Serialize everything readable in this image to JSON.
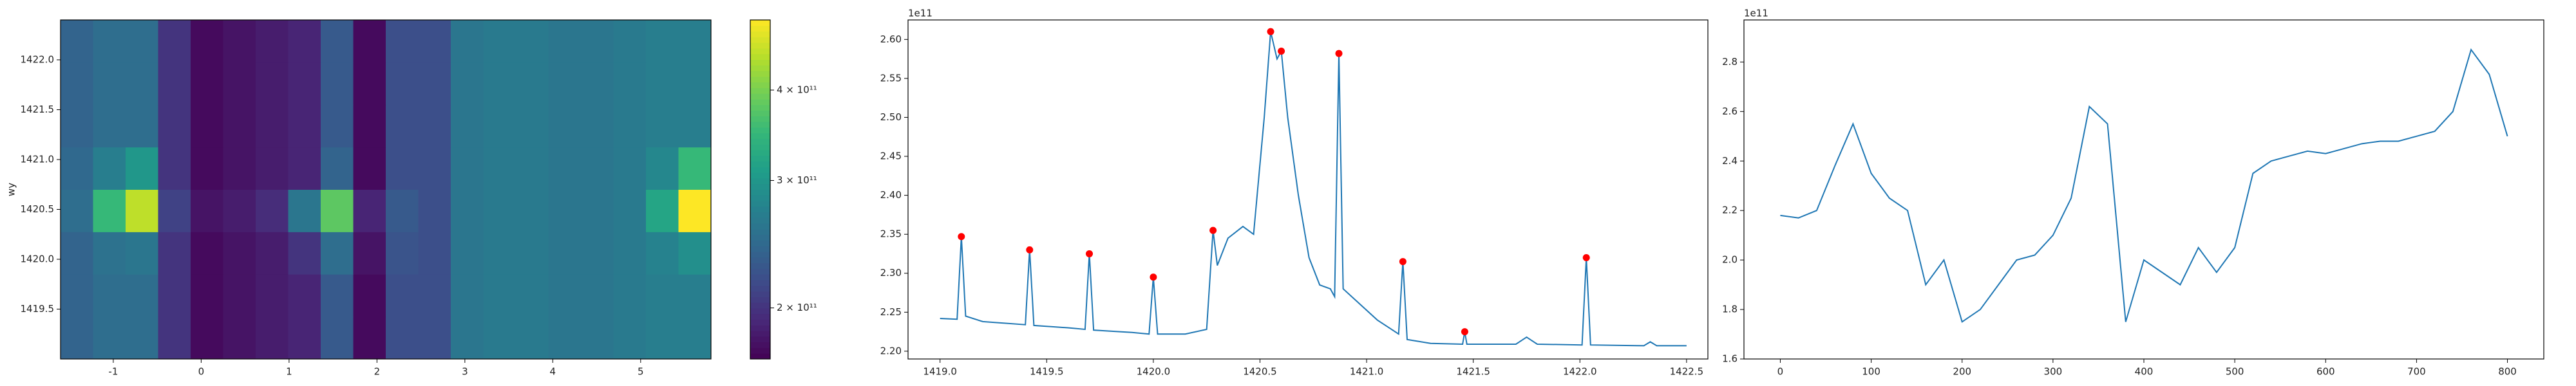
{
  "chart_data": [
    {
      "type": "heatmap",
      "ylabel": "wy",
      "xbins": [
        -1.6,
        -1.23,
        -0.86,
        -0.49,
        -0.12,
        0.25,
        0.62,
        0.99,
        1.36,
        1.73,
        2.1,
        2.47,
        2.84,
        3.21,
        3.58,
        3.95,
        4.32,
        4.69,
        5.06,
        5.43,
        5.8
      ],
      "ybins": [
        1419.0,
        1419.425,
        1419.85,
        1420.275,
        1420.7,
        1421.125,
        1421.55,
        1421.975,
        1422.4
      ],
      "z": [
        [
          240000000000.0,
          250000000000.0,
          250000000000.0,
          200000000000.0,
          175000000000.0,
          180000000000.0,
          185000000000.0,
          190000000000.0,
          230000000000.0,
          175000000000.0,
          220000000000.0,
          220000000000.0,
          260000000000.0,
          265000000000.0,
          265000000000.0,
          260000000000.0,
          260000000000.0,
          265000000000.0,
          270000000000.0,
          270000000000.0
        ],
        [
          240000000000.0,
          250000000000.0,
          250000000000.0,
          200000000000.0,
          175000000000.0,
          180000000000.0,
          185000000000.0,
          190000000000.0,
          230000000000.0,
          175000000000.0,
          220000000000.0,
          220000000000.0,
          260000000000.0,
          265000000000.0,
          265000000000.0,
          260000000000.0,
          260000000000.0,
          265000000000.0,
          270000000000.0,
          270000000000.0
        ],
        [
          240000000000.0,
          255000000000.0,
          260000000000.0,
          200000000000.0,
          175000000000.0,
          180000000000.0,
          185000000000.0,
          200000000000.0,
          250000000000.0,
          180000000000.0,
          225000000000.0,
          220000000000.0,
          260000000000.0,
          265000000000.0,
          265000000000.0,
          260000000000.0,
          260000000000.0,
          265000000000.0,
          275000000000.0,
          290000000000.0
        ],
        [
          250000000000.0,
          350000000000.0,
          450000000000.0,
          210000000000.0,
          180000000000.0,
          185000000000.0,
          195000000000.0,
          260000000000.0,
          380000000000.0,
          190000000000.0,
          230000000000.0,
          220000000000.0,
          260000000000.0,
          265000000000.0,
          265000000000.0,
          260000000000.0,
          260000000000.0,
          265000000000.0,
          320000000000.0,
          500000000000.0
        ],
        [
          245000000000.0,
          270000000000.0,
          300000000000.0,
          200000000000.0,
          175000000000.0,
          180000000000.0,
          185000000000.0,
          190000000000.0,
          240000000000.0,
          175000000000.0,
          220000000000.0,
          220000000000.0,
          260000000000.0,
          265000000000.0,
          265000000000.0,
          260000000000.0,
          260000000000.0,
          265000000000.0,
          280000000000.0,
          350000000000.0
        ],
        [
          240000000000.0,
          250000000000.0,
          250000000000.0,
          200000000000.0,
          175000000000.0,
          180000000000.0,
          185000000000.0,
          190000000000.0,
          230000000000.0,
          175000000000.0,
          220000000000.0,
          220000000000.0,
          260000000000.0,
          265000000000.0,
          265000000000.0,
          260000000000.0,
          260000000000.0,
          265000000000.0,
          270000000000.0,
          270000000000.0
        ],
        [
          240000000000.0,
          250000000000.0,
          250000000000.0,
          200000000000.0,
          175000000000.0,
          180000000000.0,
          185000000000.0,
          190000000000.0,
          230000000000.0,
          175000000000.0,
          220000000000.0,
          220000000000.0,
          260000000000.0,
          265000000000.0,
          265000000000.0,
          260000000000.0,
          260000000000.0,
          265000000000.0,
          270000000000.0,
          270000000000.0
        ],
        [
          240000000000.0,
          250000000000.0,
          250000000000.0,
          200000000000.0,
          175000000000.0,
          180000000000.0,
          185000000000.0,
          190000000000.0,
          230000000000.0,
          175000000000.0,
          220000000000.0,
          220000000000.0,
          260000000000.0,
          265000000000.0,
          265000000000.0,
          260000000000.0,
          260000000000.0,
          265000000000.0,
          270000000000.0,
          270000000000.0
        ]
      ],
      "xlim": [
        -1.6,
        5.8
      ],
      "ylim": [
        1419.0,
        1422.4
      ],
      "xticks": [
        -1,
        0,
        1,
        2,
        3,
        4,
        5
      ],
      "yticks": [
        1419.5,
        {
          "value": 1420.0,
          "label": "1420.0"
        },
        1420.5,
        {
          "value": 1421.0,
          "label": "1421.0"
        },
        1421.5,
        {
          "value": 1422.0,
          "label": "1422.0"
        }
      ],
      "colormap": "viridis",
      "color_scale": "log",
      "clim": [
        170000000000.0,
        500000000000.0
      ],
      "cticks": [
        {
          "value": 200000000000.0,
          "label": "2 × 10¹¹"
        },
        {
          "value": 300000000000.0,
          "label": "3 × 10¹¹"
        },
        {
          "value": 400000000000.0,
          "label": "4 × 10¹¹"
        }
      ]
    },
    {
      "type": "line",
      "offset_label": "1e11",
      "color": "#1f77b4",
      "x": [
        1419.0,
        1419.08,
        1419.1,
        1419.12,
        1419.2,
        1419.4,
        1419.42,
        1419.44,
        1419.6,
        1419.68,
        1419.7,
        1419.72,
        1419.9,
        1419.98,
        1420.0,
        1420.02,
        1420.15,
        1420.25,
        1420.28,
        1420.3,
        1420.35,
        1420.42,
        1420.47,
        1420.52,
        1420.55,
        1420.58,
        1420.6,
        1420.63,
        1420.68,
        1420.73,
        1420.78,
        1420.83,
        1420.85,
        1420.87,
        1420.89,
        1420.95,
        1421.05,
        1421.15,
        1421.17,
        1421.19,
        1421.3,
        1421.45,
        1421.46,
        1421.47,
        1421.7,
        1421.75,
        1421.8,
        1422.01,
        1422.03,
        1422.05,
        1422.3,
        1422.33,
        1422.36,
        1422.5
      ],
      "values": [
        2.242,
        2.241,
        2.347,
        2.245,
        2.238,
        2.234,
        2.33,
        2.233,
        2.23,
        2.228,
        2.325,
        2.227,
        2.224,
        2.222,
        2.295,
        2.222,
        2.222,
        2.228,
        2.355,
        2.31,
        2.345,
        2.36,
        2.35,
        2.5,
        2.61,
        2.575,
        2.585,
        2.5,
        2.4,
        2.32,
        2.285,
        2.28,
        2.27,
        2.582,
        2.28,
        2.265,
        2.24,
        2.222,
        2.315,
        2.215,
        2.21,
        2.209,
        2.225,
        2.209,
        2.209,
        2.218,
        2.209,
        2.208,
        2.32,
        2.208,
        2.207,
        2.212,
        2.207,
        2.207
      ],
      "markers": {
        "color": "#ff0000",
        "x": [
          1419.1,
          1419.42,
          1419.7,
          1420.0,
          1420.28,
          1420.55,
          1420.6,
          1420.87,
          1421.17,
          1421.46,
          1422.03
        ],
        "values": [
          2.347,
          2.33,
          2.325,
          2.295,
          2.355,
          2.61,
          2.585,
          2.582,
          2.315,
          2.225,
          2.32
        ]
      },
      "xlim": [
        1418.85,
        1422.6
      ],
      "ylim": [
        2.19,
        2.625
      ],
      "xticks": [
        {
          "value": 1419.0,
          "label": "1419.0"
        },
        1419.5,
        {
          "value": 1420.0,
          "label": "1420.0"
        },
        1420.5,
        {
          "value": 1421.0,
          "label": "1421.0"
        },
        1421.5,
        {
          "value": 1422.0,
          "label": "1422.0"
        },
        1422.5
      ],
      "yticks": [
        {
          "value": 2.2,
          "label": "2.20"
        },
        2.25,
        {
          "value": 2.3,
          "label": "2.30"
        },
        2.35,
        {
          "value": 2.4,
          "label": "2.40"
        },
        2.45,
        {
          "value": 2.5,
          "label": "2.50"
        },
        2.55,
        {
          "value": 2.6,
          "label": "2.60"
        }
      ]
    },
    {
      "type": "line",
      "offset_label": "1e11",
      "color": "#1f77b4",
      "x": [
        0,
        20,
        40,
        60,
        80,
        100,
        120,
        140,
        160,
        180,
        200,
        220,
        240,
        260,
        280,
        300,
        320,
        340,
        360,
        380,
        400,
        420,
        440,
        460,
        480,
        500,
        520,
        540,
        560,
        580,
        600,
        620,
        640,
        660,
        680,
        700,
        720,
        740,
        760,
        780,
        800
      ],
      "values": [
        2.18,
        2.17,
        2.2,
        2.38,
        2.55,
        2.35,
        2.25,
        2.2,
        1.9,
        2.0,
        1.75,
        1.8,
        1.9,
        2.0,
        2.02,
        2.1,
        2.25,
        2.62,
        2.55,
        1.75,
        2.0,
        1.95,
        1.9,
        2.05,
        1.95,
        2.05,
        2.35,
        2.4,
        2.42,
        2.44,
        2.43,
        2.45,
        2.47,
        2.48,
        2.48,
        2.5,
        2.52,
        2.6,
        2.85,
        2.75,
        2.5
      ],
      "xlim": [
        -40,
        840
      ],
      "ylim": [
        1.6,
        2.97
      ],
      "xticks": [
        0,
        100,
        200,
        300,
        400,
        500,
        600,
        700,
        800
      ],
      "yticks": [
        1.6,
        1.8,
        {
          "value": 2.0,
          "label": "2.0"
        },
        2.2,
        2.4,
        2.6,
        2.8
      ]
    }
  ]
}
